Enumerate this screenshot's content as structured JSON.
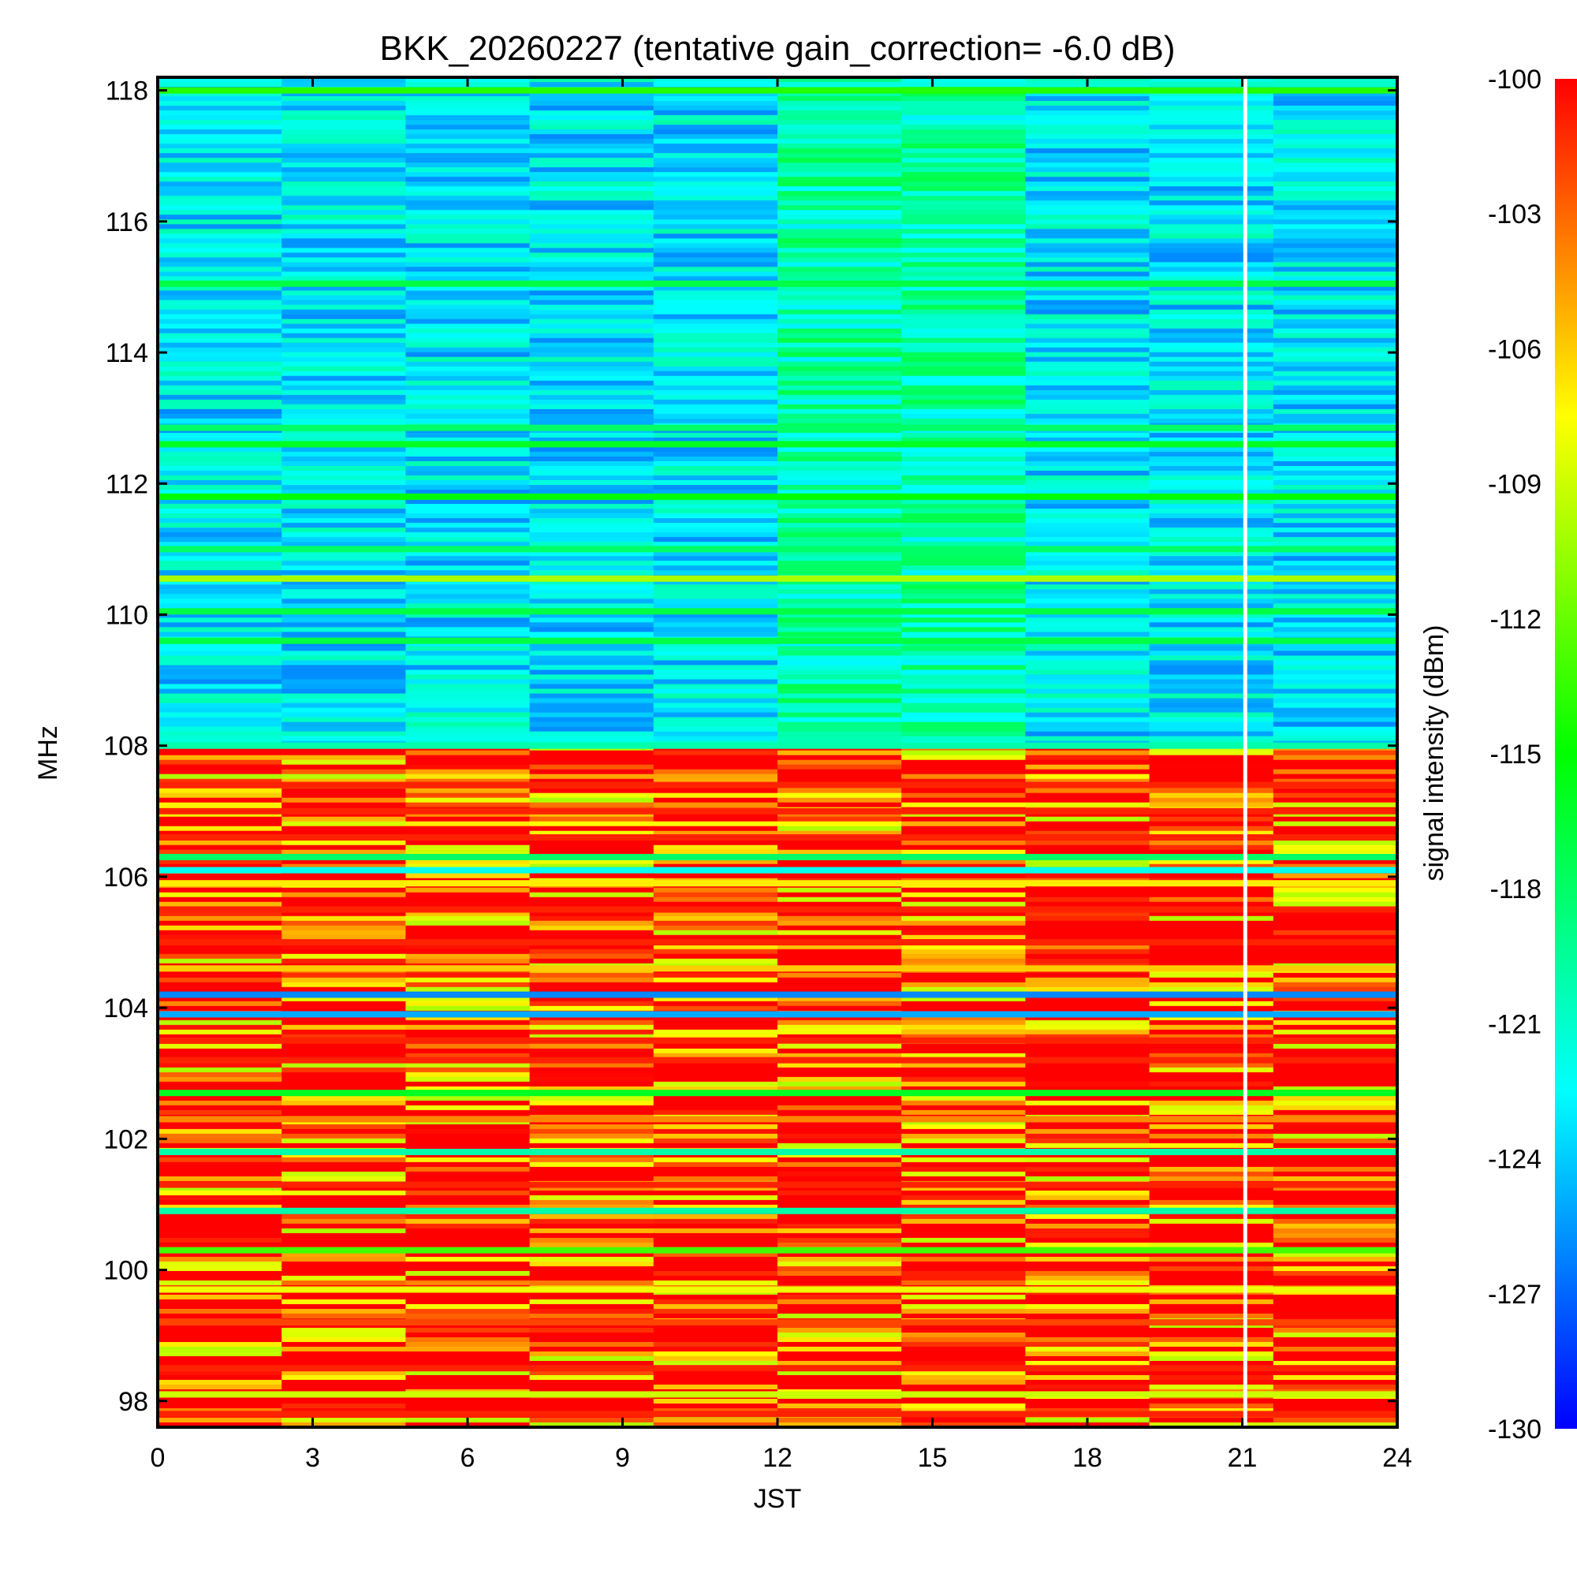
{
  "chart_data": {
    "type": "heatmap",
    "title": "BKK_20260227 (tentative gain_correction= -6.0 dB)",
    "xlabel": "JST",
    "ylabel": "MHz",
    "xlim": [
      0,
      24
    ],
    "ylim": [
      97.6,
      118.2
    ],
    "xticks": [
      "0",
      "3",
      "6",
      "9",
      "12",
      "15",
      "18",
      "21",
      "24"
    ],
    "yticks": [
      "98",
      "100",
      "102",
      "104",
      "106",
      "108",
      "110",
      "112",
      "114",
      "116",
      "118"
    ],
    "colorbar": {
      "label": "signal intensity (dBm)",
      "range": [
        -130,
        -100
      ],
      "ticks": [
        "-100",
        "-103",
        "-106",
        "-109",
        "-112",
        "-115",
        "-118",
        "-121",
        "-124",
        "-127",
        "-130"
      ],
      "colormap": [
        "#0000ff",
        "#0080ff",
        "#00ffff",
        "#00ff80",
        "#00ff00",
        "#80ff00",
        "#ffff00",
        "#ff8000",
        "#ff0000"
      ]
    },
    "data_gap": {
      "time_jst": 21.05,
      "color": "#ffffff"
    },
    "regions": [
      {
        "freq_range": [
          108,
          118.2
        ],
        "level_dbm": -123,
        "description": "mostly blue background, brighter cyan 11-17.5 JST"
      },
      {
        "freq_range": [
          97.6,
          108
        ],
        "level_dbm": -104,
        "description": "FM broadcast band, red/yellow/green"
      }
    ],
    "bands": [
      {
        "freq_mhz": 118.0,
        "level_dbm": -114
      },
      {
        "freq_mhz": 115.05,
        "level_dbm": -117
      },
      {
        "freq_mhz": 112.85,
        "level_dbm": -118
      },
      {
        "freq_mhz": 112.6,
        "level_dbm": -116
      },
      {
        "freq_mhz": 111.8,
        "level_dbm": -115
      },
      {
        "freq_mhz": 111.0,
        "level_dbm": -118
      },
      {
        "freq_mhz": 110.55,
        "level_dbm": -110
      },
      {
        "freq_mhz": 110.05,
        "level_dbm": -117
      },
      {
        "freq_mhz": 109.6,
        "level_dbm": -117
      },
      {
        "freq_mhz": 108.0,
        "level_dbm": -120
      },
      {
        "freq_mhz": 107.4,
        "level_dbm": -101
      },
      {
        "freq_mhz": 107.0,
        "level_dbm": -101
      },
      {
        "freq_mhz": 106.6,
        "level_dbm": -101
      },
      {
        "freq_mhz": 106.3,
        "level_dbm": -118
      },
      {
        "freq_mhz": 106.1,
        "level_dbm": -122
      },
      {
        "freq_mhz": 105.9,
        "level_dbm": -107
      },
      {
        "freq_mhz": 105.5,
        "level_dbm": -101
      },
      {
        "freq_mhz": 105.0,
        "level_dbm": -101
      },
      {
        "freq_mhz": 104.6,
        "level_dbm": -106
      },
      {
        "freq_mhz": 104.2,
        "level_dbm": -126
      },
      {
        "freq_mhz": 103.9,
        "level_dbm": -125
      },
      {
        "freq_mhz": 103.5,
        "level_dbm": -101
      },
      {
        "freq_mhz": 103.2,
        "level_dbm": -101
      },
      {
        "freq_mhz": 102.7,
        "level_dbm": -116
      },
      {
        "freq_mhz": 102.3,
        "level_dbm": -104
      },
      {
        "freq_mhz": 101.8,
        "level_dbm": -120
      },
      {
        "freq_mhz": 101.3,
        "level_dbm": -101
      },
      {
        "freq_mhz": 100.9,
        "level_dbm": -120
      },
      {
        "freq_mhz": 100.3,
        "level_dbm": -113
      },
      {
        "freq_mhz": 99.7,
        "level_dbm": -108
      },
      {
        "freq_mhz": 99.2,
        "level_dbm": -102
      },
      {
        "freq_mhz": 98.5,
        "level_dbm": -101
      },
      {
        "freq_mhz": 98.1,
        "level_dbm": -109
      },
      {
        "freq_mhz": 97.8,
        "level_dbm": -101
      }
    ]
  }
}
